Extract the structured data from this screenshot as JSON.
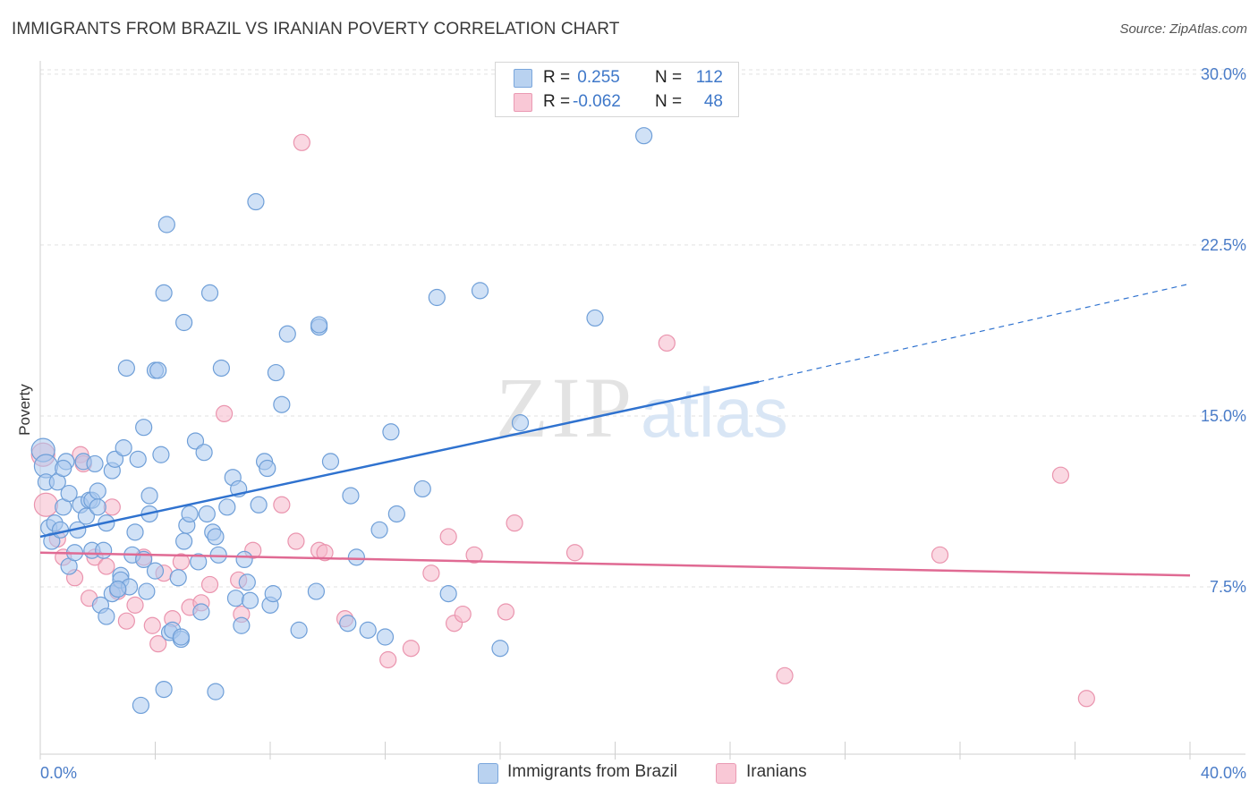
{
  "header": {
    "title": "IMMIGRANTS FROM BRAZIL VS IRANIAN POVERTY CORRELATION CHART",
    "source": "Source: ZipAtlas.com"
  },
  "watermark": {
    "zip": "ZIP",
    "atlas": "atlas"
  },
  "colors": {
    "blue_fill": "#a9c8ee",
    "blue_stroke": "#6f9fd8",
    "blue_line": "#2f72cf",
    "pink_fill": "#f6b8cb",
    "pink_stroke": "#ea94ae",
    "pink_line": "#e06a93",
    "tick_label": "#4a7cc8"
  },
  "legend_top": {
    "rows": [
      {
        "r_label": "R =",
        "r_value": " 0.255",
        "n_label": "N =",
        "n_value": "112"
      },
      {
        "r_label": "R =",
        "r_value": "-0.062",
        "n_label": "N =",
        "n_value": "48"
      }
    ]
  },
  "legend_bottom": {
    "items": [
      {
        "label": "Immigrants from Brazil"
      },
      {
        "label": "Iranians"
      }
    ]
  },
  "chart_data": {
    "type": "scatter",
    "title": "IMMIGRANTS FROM BRAZIL VS IRANIAN POVERTY CORRELATION CHART",
    "xlabel": "",
    "ylabel": "Poverty",
    "xlim": [
      0,
      40
    ],
    "ylim": [
      0,
      30.5
    ],
    "x_tick_labels": [
      "0.0%",
      "40.0%"
    ],
    "y_ticks": [
      7.5,
      15.0,
      22.5,
      30.0
    ],
    "y_tick_labels": [
      "7.5%",
      "15.0%",
      "22.5%",
      "30.0%"
    ],
    "grid": "horizontal dashed",
    "series": [
      {
        "name": "Immigrants from Brazil",
        "color": "blue",
        "r": 0.255,
        "n": 112,
        "trend": {
          "x_start": 0,
          "y_start": 9.7,
          "x_solid_end": 25,
          "y_solid_end": 16.5,
          "x_end": 40,
          "y_end": 20.8
        },
        "points": [
          [
            0.1,
            13.5
          ],
          [
            0.2,
            12.8
          ],
          [
            0.2,
            12.1
          ],
          [
            0.3,
            10.1
          ],
          [
            0.4,
            9.5
          ],
          [
            0.5,
            10.3
          ],
          [
            0.6,
            12.1
          ],
          [
            0.7,
            10.0
          ],
          [
            0.8,
            11.0
          ],
          [
            0.9,
            13.0
          ],
          [
            1.0,
            8.4
          ],
          [
            1.0,
            11.6
          ],
          [
            1.2,
            9.0
          ],
          [
            1.3,
            10.0
          ],
          [
            1.4,
            11.1
          ],
          [
            1.5,
            13.0
          ],
          [
            1.6,
            10.6
          ],
          [
            1.7,
            11.3
          ],
          [
            1.8,
            11.3
          ],
          [
            1.8,
            9.1
          ],
          [
            1.9,
            12.9
          ],
          [
            2.0,
            11.7
          ],
          [
            2.0,
            11.0
          ],
          [
            2.1,
            6.7
          ],
          [
            2.2,
            9.1
          ],
          [
            2.3,
            10.3
          ],
          [
            2.3,
            6.2
          ],
          [
            2.5,
            7.2
          ],
          [
            2.5,
            12.6
          ],
          [
            2.6,
            13.1
          ],
          [
            2.7,
            7.4
          ],
          [
            2.8,
            8.0
          ],
          [
            2.8,
            7.8
          ],
          [
            2.9,
            13.6
          ],
          [
            3.0,
            17.1
          ],
          [
            3.1,
            7.5
          ],
          [
            3.2,
            8.9
          ],
          [
            3.3,
            9.9
          ],
          [
            3.4,
            13.1
          ],
          [
            3.5,
            2.3
          ],
          [
            3.6,
            8.7
          ],
          [
            3.6,
            14.5
          ],
          [
            3.7,
            7.3
          ],
          [
            3.8,
            11.5
          ],
          [
            3.8,
            10.7
          ],
          [
            4.0,
            8.2
          ],
          [
            4.0,
            17.0
          ],
          [
            4.1,
            17.0
          ],
          [
            4.2,
            13.3
          ],
          [
            4.3,
            20.4
          ],
          [
            4.4,
            23.4
          ],
          [
            4.3,
            3.0
          ],
          [
            4.5,
            5.5
          ],
          [
            4.6,
            5.6
          ],
          [
            4.8,
            7.9
          ],
          [
            4.9,
            5.2
          ],
          [
            5.0,
            19.1
          ],
          [
            5.0,
            9.5
          ],
          [
            5.1,
            10.2
          ],
          [
            5.2,
            10.7
          ],
          [
            5.4,
            13.9
          ],
          [
            5.5,
            8.6
          ],
          [
            5.6,
            6.4
          ],
          [
            5.7,
            13.4
          ],
          [
            5.8,
            10.7
          ],
          [
            5.9,
            20.4
          ],
          [
            6.0,
            9.9
          ],
          [
            6.1,
            2.9
          ],
          [
            6.1,
            9.7
          ],
          [
            6.2,
            8.9
          ],
          [
            6.3,
            17.1
          ],
          [
            6.5,
            11.0
          ],
          [
            6.7,
            12.3
          ],
          [
            6.8,
            7.0
          ],
          [
            6.9,
            11.8
          ],
          [
            7.0,
            5.8
          ],
          [
            7.1,
            8.7
          ],
          [
            7.2,
            7.7
          ],
          [
            7.3,
            6.9
          ],
          [
            7.5,
            24.4
          ],
          [
            7.6,
            11.1
          ],
          [
            7.8,
            13.0
          ],
          [
            7.9,
            12.7
          ],
          [
            8.0,
            6.7
          ],
          [
            8.1,
            7.2
          ],
          [
            8.2,
            16.9
          ],
          [
            8.4,
            15.5
          ],
          [
            8.6,
            18.6
          ],
          [
            9.0,
            5.6
          ],
          [
            9.7,
            18.9
          ],
          [
            9.7,
            19.0
          ],
          [
            9.6,
            7.3
          ],
          [
            10.1,
            13.0
          ],
          [
            10.8,
            11.5
          ],
          [
            11.0,
            8.8
          ],
          [
            11.4,
            5.6
          ],
          [
            11.8,
            10.0
          ],
          [
            12.0,
            5.3
          ],
          [
            12.2,
            14.3
          ],
          [
            12.4,
            10.7
          ],
          [
            13.3,
            11.8
          ],
          [
            13.8,
            20.2
          ],
          [
            14.2,
            7.2
          ],
          [
            15.3,
            20.5
          ],
          [
            16.0,
            4.8
          ],
          [
            16.7,
            14.7
          ],
          [
            19.3,
            19.3
          ],
          [
            21.0,
            27.3
          ],
          [
            10.7,
            5.9
          ],
          [
            4.9,
            5.3
          ],
          [
            2.7,
            7.4
          ],
          [
            0.8,
            12.7
          ]
        ]
      },
      {
        "name": "Iranians",
        "color": "pink",
        "r": -0.062,
        "n": 48,
        "trend": {
          "x_start": 0,
          "y_start": 9.0,
          "x_end": 40,
          "y_end": 8.0
        },
        "points": [
          [
            0.1,
            13.3
          ],
          [
            0.2,
            11.1
          ],
          [
            0.6,
            9.6
          ],
          [
            0.8,
            8.8
          ],
          [
            1.2,
            7.9
          ],
          [
            1.4,
            13.3
          ],
          [
            1.7,
            7.0
          ],
          [
            1.9,
            8.8
          ],
          [
            2.3,
            8.4
          ],
          [
            2.5,
            11.0
          ],
          [
            2.7,
            7.3
          ],
          [
            3.0,
            6.0
          ],
          [
            3.3,
            6.7
          ],
          [
            3.6,
            8.8
          ],
          [
            3.9,
            5.8
          ],
          [
            4.1,
            5.0
          ],
          [
            4.3,
            8.1
          ],
          [
            4.6,
            6.1
          ],
          [
            4.9,
            8.6
          ],
          [
            5.2,
            6.6
          ],
          [
            5.6,
            6.8
          ],
          [
            5.9,
            7.6
          ],
          [
            6.4,
            15.1
          ],
          [
            6.9,
            7.8
          ],
          [
            7.0,
            6.3
          ],
          [
            7.4,
            9.1
          ],
          [
            8.4,
            11.1
          ],
          [
            8.9,
            9.5
          ],
          [
            9.1,
            27.0
          ],
          [
            9.7,
            9.1
          ],
          [
            9.9,
            9.0
          ],
          [
            10.6,
            6.1
          ],
          [
            12.1,
            4.3
          ],
          [
            12.9,
            4.8
          ],
          [
            13.6,
            8.1
          ],
          [
            14.2,
            9.7
          ],
          [
            14.4,
            5.9
          ],
          [
            14.7,
            6.3
          ],
          [
            15.1,
            8.9
          ],
          [
            16.2,
            6.4
          ],
          [
            16.5,
            10.3
          ],
          [
            18.6,
            9.0
          ],
          [
            21.8,
            18.2
          ],
          [
            25.9,
            3.6
          ],
          [
            31.3,
            8.9
          ],
          [
            35.5,
            12.4
          ],
          [
            36.4,
            2.6
          ],
          [
            1.5,
            12.9
          ]
        ]
      }
    ]
  }
}
